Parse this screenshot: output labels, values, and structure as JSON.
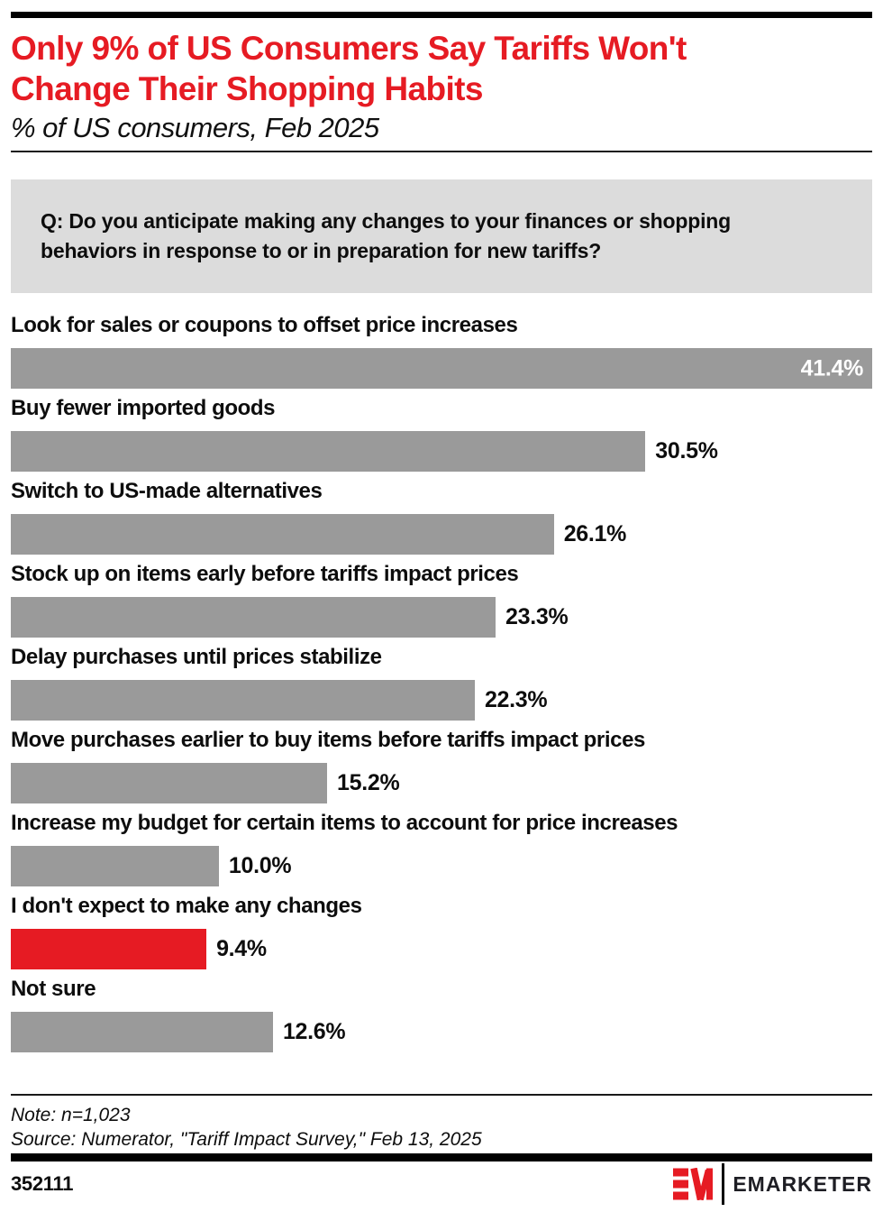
{
  "header": {
    "title": "Only 9% of US Consumers Say Tariffs Won't Change Their Shopping Habits",
    "title_lines": [
      "Only 9% of US Consumers Say Tariffs Won't",
      "Change Their Shopping Habits"
    ],
    "subtitle": "% of US consumers, Feb 2025"
  },
  "question": "Q: Do you anticipate making any changes to your finances or shopping behaviors in response to or in preparation for new tariffs?",
  "chart_data": {
    "type": "bar",
    "orientation": "horizontal",
    "unit": "%",
    "title": "Only 9% of US Consumers Say Tariffs Won't Change Their Shopping Habits",
    "subtitle": "% of US consumers, Feb 2025",
    "categories": [
      "Look for sales or coupons to offset price increases",
      "Buy fewer imported goods",
      "Switch to US-made alternatives",
      "Stock up on items early before tariffs impact prices",
      "Delay purchases until prices stabilize",
      "Move purchases earlier to buy items before tariffs impact prices",
      "Increase my budget for certain items to account for price increases",
      "I don't expect to make any changes",
      "Not sure"
    ],
    "values": [
      41.4,
      30.5,
      26.1,
      23.3,
      22.3,
      15.2,
      10.0,
      9.4,
      12.6
    ],
    "value_labels": [
      "41.4%",
      "30.5%",
      "26.1%",
      "23.3%",
      "22.3%",
      "15.2%",
      "10.0%",
      "9.4%",
      "12.6%"
    ],
    "axis_max": 41.4,
    "highlight_index": 7,
    "bar_color": "#9a9a9a",
    "highlight_color": "#e61b23",
    "first_value_inside": true,
    "grid": false,
    "legend": false
  },
  "colors": {
    "brand_red": "#e61b23",
    "bar_gray": "#9a9a9a",
    "question_box_bg": "#dcdcdc"
  },
  "footer": {
    "note": "Note: n=1,023",
    "source": "Source: Numerator, \"Tariff Impact Survey,\" Feb 13, 2025",
    "chart_id": "352111",
    "brand": "EMARKETER"
  }
}
